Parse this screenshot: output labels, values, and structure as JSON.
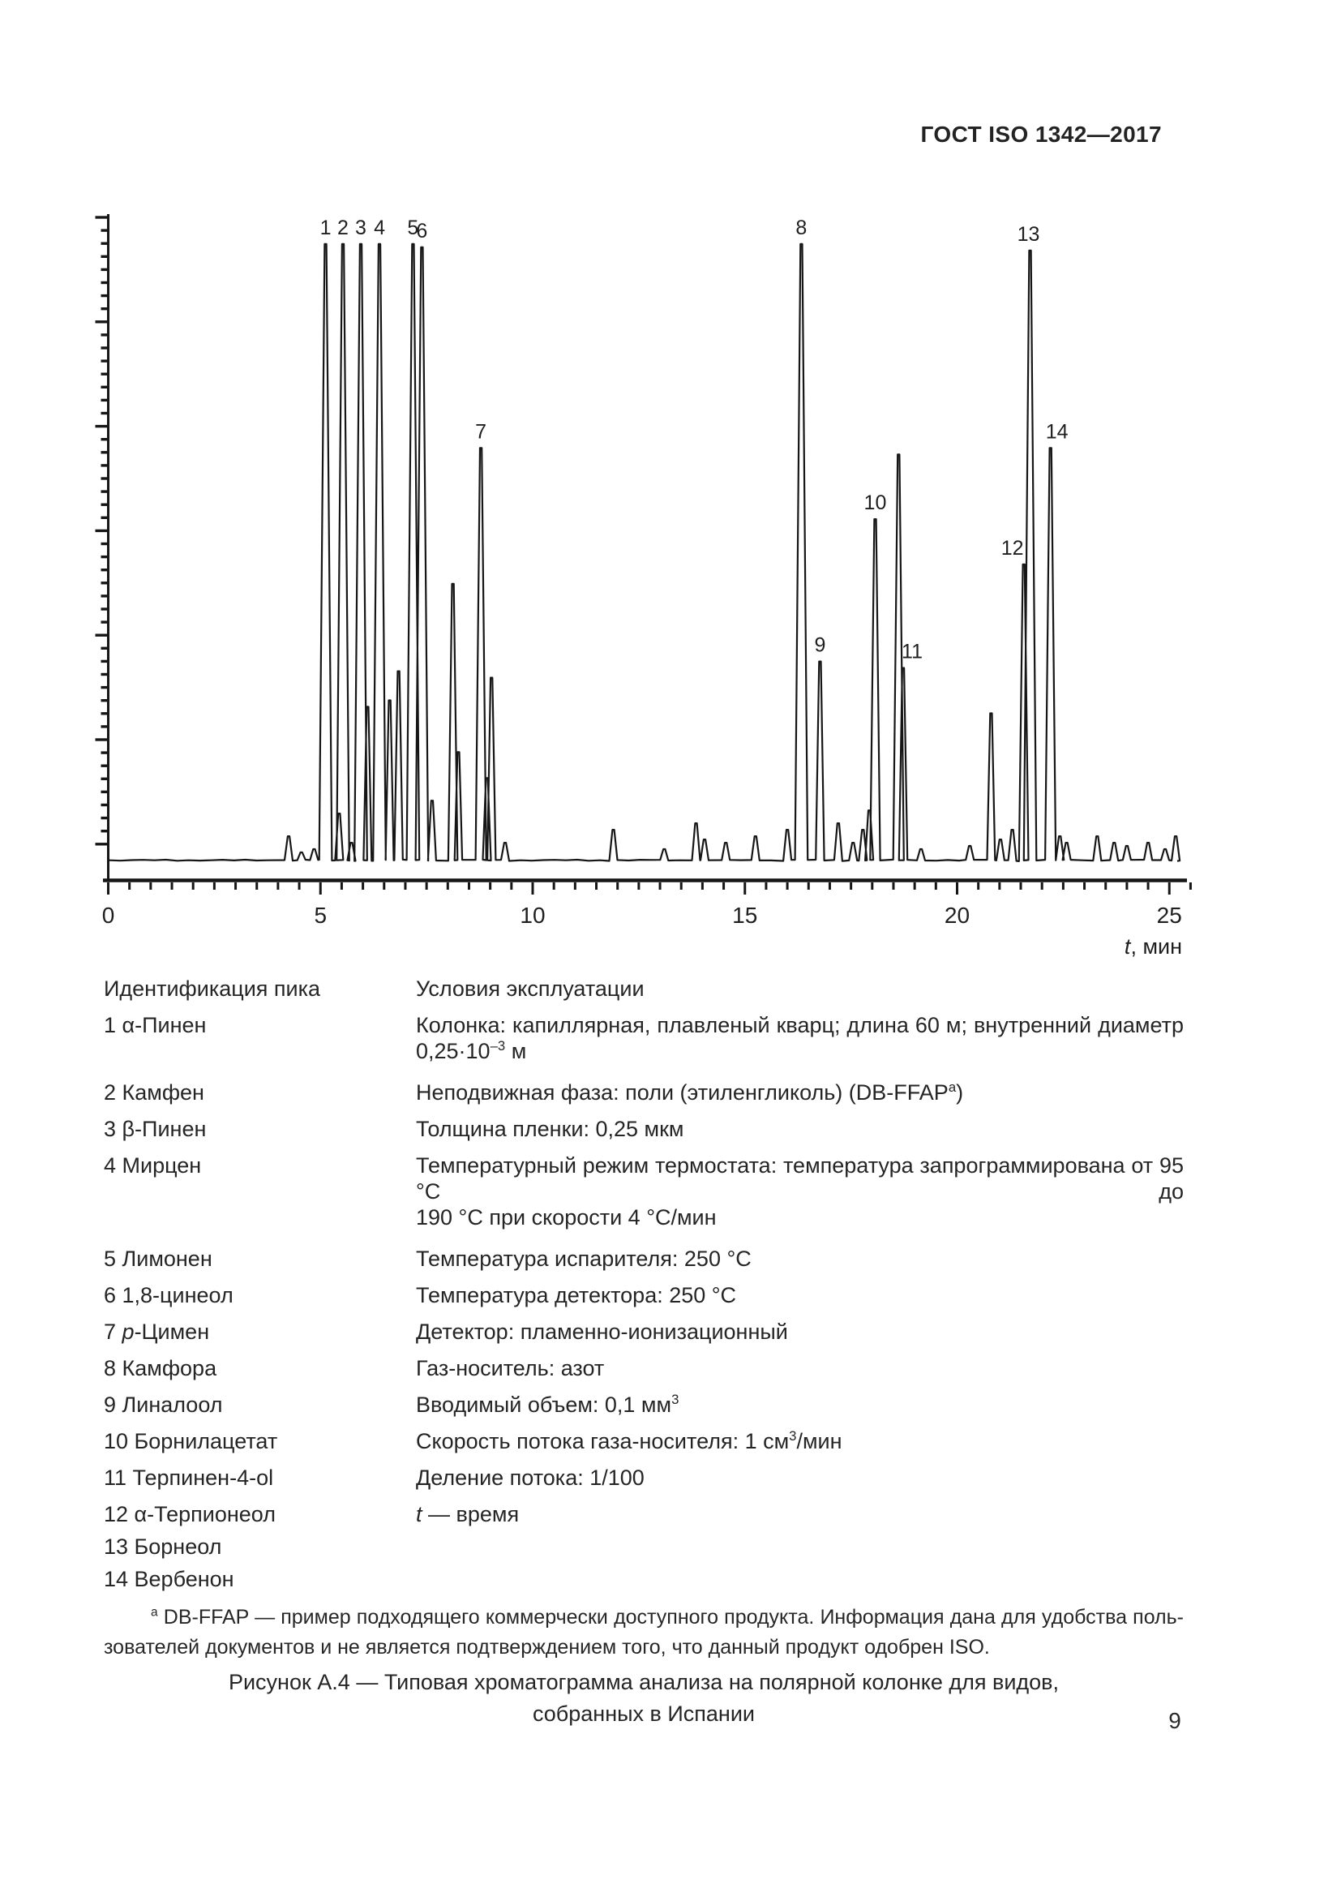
{
  "page": {
    "header": "ГОСТ ISO 1342—2017",
    "page_number": "9"
  },
  "table": {
    "rows": [
      {
        "left": [
          "Идентификация пика"
        ],
        "right": [
          {
            "segs": [
              "Условия эксплуатации"
            ]
          }
        ]
      },
      {
        "left": [
          "1 α-Пинен"
        ],
        "right": [
          {
            "j": true,
            "segs": [
              "Колонка: капиллярная, плавленый кварц; длина 60 м; внутренний диаметр"
            ]
          },
          {
            "segs": [
              "0,25·10",
              {
                "t": "–3",
                "s": "sup"
              },
              " м"
            ]
          }
        ]
      },
      {
        "left": [
          "2 Камфен"
        ],
        "right": [
          {
            "segs": [
              "Неподвижная фаза: поли (этиленгликоль) (DB-FFAP",
              {
                "t": "a",
                "s": "sup"
              },
              ")"
            ]
          }
        ]
      },
      {
        "left": [
          "3 β-Пинен"
        ],
        "right": [
          {
            "segs": [
              "Толщина пленки: 0,25 мкм"
            ]
          }
        ]
      },
      {
        "left": [
          "4 Мирцен"
        ],
        "right": [
          {
            "j": true,
            "segs": [
              "Температурный режим термостата: температура запрограммирована от 95 °С до"
            ]
          },
          {
            "segs": [
              "190 °С при скорости 4 °С/мин"
            ]
          }
        ]
      },
      {
        "left": [
          "5 Лимонен"
        ],
        "right": [
          {
            "segs": [
              "Температура испарителя: 250 °С"
            ]
          }
        ]
      },
      {
        "left": [
          "6 1,8-цинеол"
        ],
        "right": [
          {
            "segs": [
              "Температура детектора: 250 °С"
            ]
          }
        ]
      },
      {
        "left": [
          "7 ",
          {
            "t": "p",
            "s": "i"
          },
          "-Цимен"
        ],
        "right": [
          {
            "segs": [
              "Детектор: пламенно-ионизационный"
            ]
          }
        ]
      },
      {
        "left": [
          "8 Камфора"
        ],
        "right": [
          {
            "segs": [
              "Газ-носитель: азот"
            ]
          }
        ]
      },
      {
        "left": [
          "9 Линалоол"
        ],
        "right": [
          {
            "segs": [
              "Вводимый объем: 0,1 мм",
              {
                "t": "3",
                "s": "sup"
              }
            ]
          }
        ]
      },
      {
        "left": [
          "10 Борнилацетат"
        ],
        "right": [
          {
            "segs": [
              "Скорость потока газа-носителя: 1 см",
              {
                "t": "3",
                "s": "sup"
              },
              "/мин"
            ]
          }
        ]
      },
      {
        "left": [
          "11 Терпинен-4-ol"
        ],
        "right": [
          {
            "segs": [
              "Деление потока: 1/100"
            ]
          }
        ]
      },
      {
        "left": [
          "12 α-Терпионеол"
        ],
        "right": [
          {
            "segs": [
              {
                "t": "t",
                "s": "i"
              },
              " — время"
            ]
          }
        ]
      },
      {
        "left": [
          "13 Борнеол"
        ],
        "right": []
      },
      {
        "left": [
          "14 Вербенон"
        ],
        "right": []
      }
    ]
  },
  "footnote": {
    "marker": "a",
    "line1": " DB-FFAP — пример подходящего коммерчески доступного продукта. Информация дана для удобства поль-",
    "line2": "зователей документов и не является подтверждением того, что данный продукт одобрен ISO."
  },
  "caption": {
    "line1": "Рисунок А.4 — Типовая хроматограмма анализа на полярной колонке для видов,",
    "line2": "собранных в Испании"
  },
  "chart_data": {
    "type": "line",
    "title": "",
    "xlabel_segments": [
      {
        "t": "t",
        "s": "i"
      },
      {
        "t": ", мин"
      }
    ],
    "x_ticks": [
      0,
      5,
      10,
      15,
      20,
      25
    ],
    "x_minor_step": 0.5,
    "xlim": [
      0,
      25.5
    ],
    "y_axis": "unlabeled detector-response ruler axis, minor ticks with every 8th tick longer",
    "peaks": [
      {
        "t": 4.25,
        "h": 4
      },
      {
        "t": 4.55,
        "h": 1.5
      },
      {
        "t": 4.85,
        "h": 2
      },
      {
        "t": 5.12,
        "h": 95.5,
        "label": "1"
      },
      {
        "t": 5.44,
        "h": 7.5
      },
      {
        "t": 5.53,
        "h": 95.5,
        "label": "2"
      },
      {
        "t": 5.73,
        "h": 3
      },
      {
        "t": 5.95,
        "h": 95.5,
        "label": "3"
      },
      {
        "t": 6.11,
        "h": 24
      },
      {
        "t": 6.39,
        "h": 95.5,
        "label": "4"
      },
      {
        "t": 6.63,
        "h": 25
      },
      {
        "t": 6.84,
        "h": 29.5
      },
      {
        "t": 7.18,
        "h": 95.5,
        "label": "5"
      },
      {
        "t": 7.39,
        "h": 95,
        "label": "6"
      },
      {
        "t": 7.63,
        "h": 9.5
      },
      {
        "t": 8.12,
        "h": 43
      },
      {
        "t": 8.25,
        "h": 17
      },
      {
        "t": 8.78,
        "h": 64,
        "label": "7"
      },
      {
        "t": 8.92,
        "h": 13
      },
      {
        "t": 9.03,
        "h": 28.5
      },
      {
        "t": 9.35,
        "h": 3
      },
      {
        "t": 11.9,
        "h": 5
      },
      {
        "t": 13.1,
        "h": 2
      },
      {
        "t": 13.85,
        "h": 6
      },
      {
        "t": 14.05,
        "h": 3.5
      },
      {
        "t": 14.55,
        "h": 3
      },
      {
        "t": 15.25,
        "h": 4
      },
      {
        "t": 16.0,
        "h": 5
      },
      {
        "t": 16.33,
        "h": 95.5,
        "label": "8"
      },
      {
        "t": 16.77,
        "h": 31,
        "label": "9"
      },
      {
        "t": 17.2,
        "h": 6
      },
      {
        "t": 17.55,
        "h": 3
      },
      {
        "t": 17.78,
        "h": 5
      },
      {
        "t": 17.93,
        "h": 8
      },
      {
        "t": 18.07,
        "h": 53,
        "label": "10"
      },
      {
        "t": 18.62,
        "h": 63
      },
      {
        "t": 18.73,
        "h": 30,
        "label": "11"
      },
      {
        "t": 19.15,
        "h": 2
      },
      {
        "t": 20.3,
        "h": 2.5
      },
      {
        "t": 20.8,
        "h": 23
      },
      {
        "t": 21.02,
        "h": 3.5
      },
      {
        "t": 21.3,
        "h": 5
      },
      {
        "t": 21.57,
        "h": 46,
        "label": "12"
      },
      {
        "t": 21.72,
        "h": 94.5,
        "label": "13"
      },
      {
        "t": 22.2,
        "h": 64,
        "label": "14"
      },
      {
        "t": 22.42,
        "h": 4
      },
      {
        "t": 22.58,
        "h": 3
      },
      {
        "t": 23.3,
        "h": 4
      },
      {
        "t": 23.7,
        "h": 3
      },
      {
        "t": 24.0,
        "h": 2.5
      },
      {
        "t": 24.5,
        "h": 3
      },
      {
        "t": 24.9,
        "h": 2
      },
      {
        "t": 25.15,
        "h": 4
      }
    ]
  }
}
